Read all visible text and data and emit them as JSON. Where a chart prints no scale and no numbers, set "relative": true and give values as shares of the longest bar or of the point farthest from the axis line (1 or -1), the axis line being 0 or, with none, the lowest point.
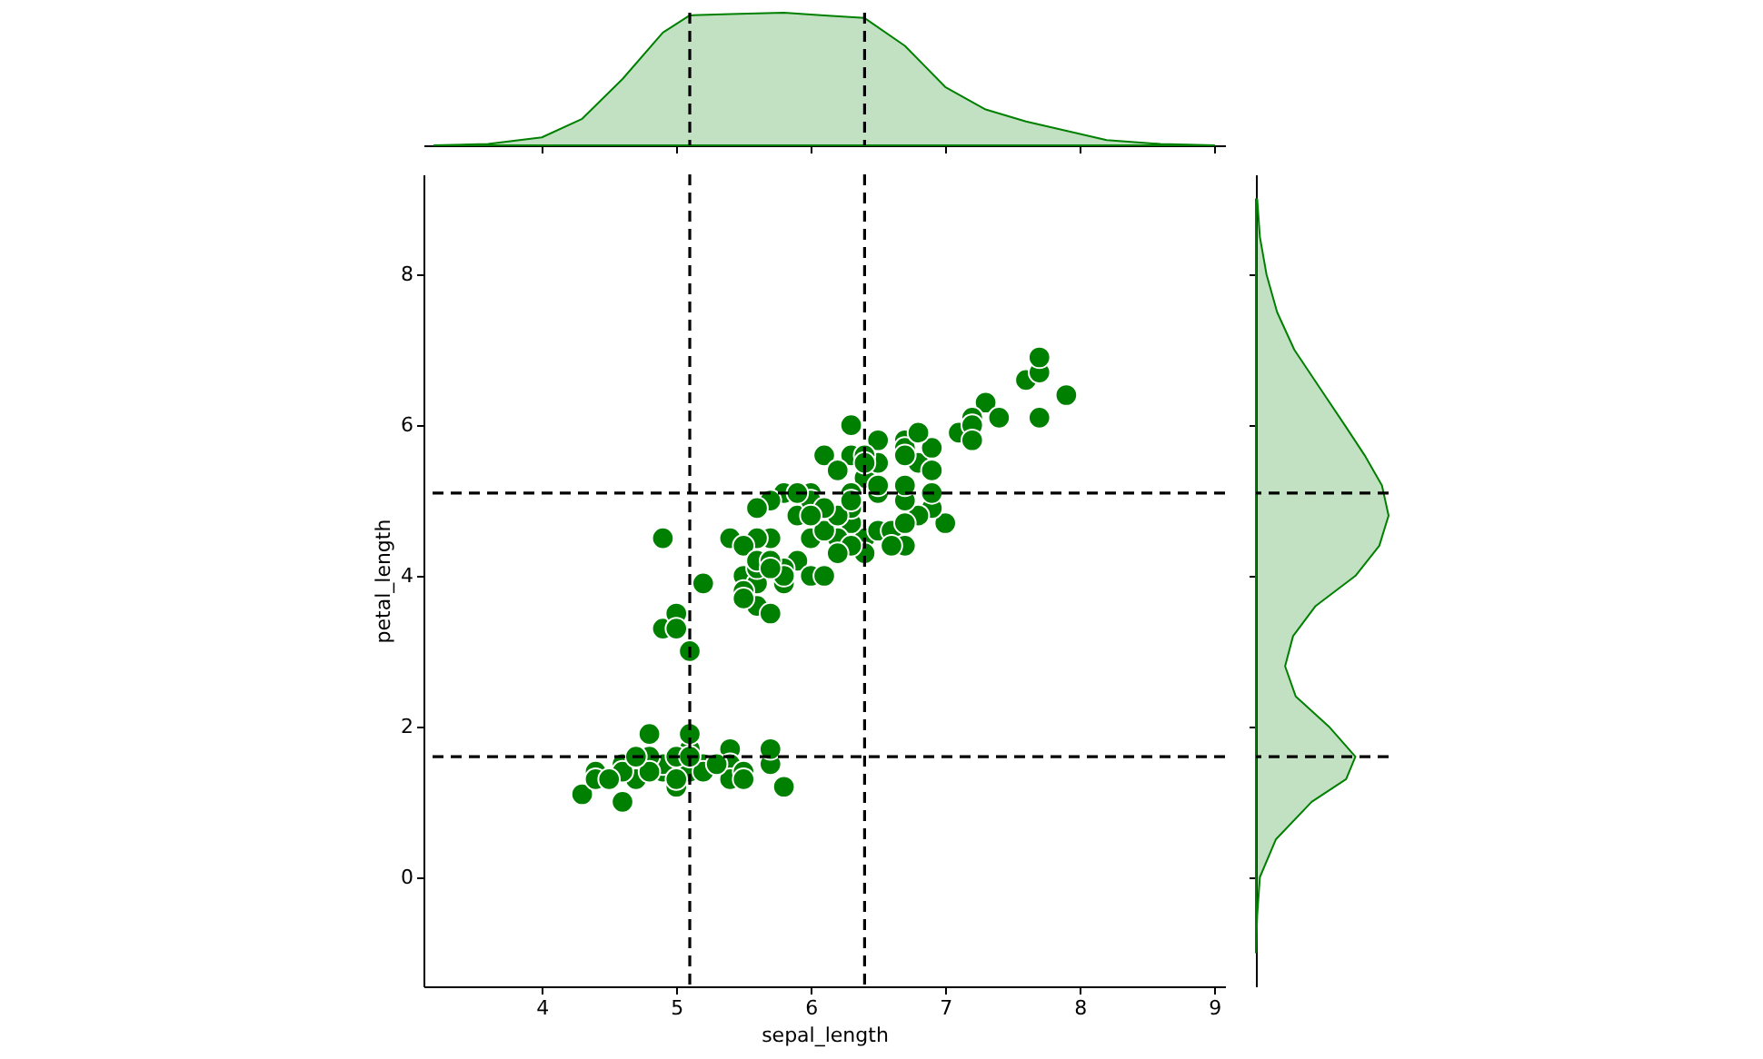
{
  "chart_data": [
    {
      "type": "area",
      "xlim": [
        3.12,
        9.08
      ],
      "xticks": [
        4,
        5,
        6,
        7,
        8,
        9
      ],
      "relative": true,
      "tick_labels": false,
      "x": [
        3.2,
        3.6,
        4.0,
        4.3,
        4.6,
        4.9,
        5.1,
        5.4,
        5.8,
        6.1,
        6.4,
        6.7,
        7.0,
        7.3,
        7.6,
        7.9,
        8.2,
        8.6,
        9.0
      ],
      "series": [
        {
          "color": "#008000",
          "values": [
            0,
            0.01,
            0.06,
            0.2,
            0.5,
            0.85,
            0.98,
            0.99,
            1.0,
            0.98,
            0.96,
            0.75,
            0.44,
            0.27,
            0.18,
            0.11,
            0.04,
            0.01,
            0
          ]
        }
      ],
      "ref_lines": [
        {
          "axis": "x",
          "value": 5.1,
          "color": "#000000",
          "line_style": "dashed"
        },
        {
          "axis": "x",
          "value": 6.4,
          "color": "#000000",
          "line_style": "dashed"
        }
      ]
    },
    {
      "type": "scatter",
      "xlabel": "sepal_length",
      "ylabel": "petal_length",
      "xlim": [
        3.12,
        9.08
      ],
      "ylim": [
        -1.45,
        9.33
      ],
      "xticks": [
        4,
        5,
        6,
        7,
        8,
        9
      ],
      "yticks": [
        0,
        2,
        4,
        6,
        8
      ],
      "marker": "circle",
      "x": [
        5.1,
        4.9,
        4.7,
        4.6,
        5.4,
        4.6,
        4.4,
        4.9,
        5.4,
        4.8,
        4.8,
        4.3,
        5.8,
        5.7,
        5.4,
        5.7,
        4.6,
        5.1,
        4.8,
        5.0,
        5.2,
        5.2,
        4.7,
        5.5,
        5.0,
        5.5,
        4.4,
        5.0,
        4.5,
        5.1,
        5.1,
        5.3,
        7.0,
        6.4,
        6.9,
        5.5,
        6.5,
        5.7,
        6.3,
        4.9,
        6.6,
        5.2,
        5.0,
        5.9,
        6.0,
        5.6,
        6.7,
        5.6,
        5.8,
        6.2,
        5.6,
        5.9,
        6.1,
        6.3,
        6.4,
        6.6,
        6.8,
        6.7,
        6.0,
        5.7,
        5.5,
        5.5,
        5.8,
        6.0,
        5.4,
        6.7,
        6.3,
        5.6,
        5.5,
        6.1,
        5.8,
        5.0,
        5.6,
        5.7,
        6.2,
        5.1,
        5.7,
        6.3,
        5.8,
        7.1,
        6.3,
        6.5,
        7.6,
        4.9,
        7.3,
        6.7,
        7.2,
        6.5,
        6.4,
        6.8,
        5.7,
        6.5,
        7.7,
        7.7,
        6.0,
        6.9,
        5.6,
        6.7,
        7.2,
        6.2,
        6.1,
        6.4,
        7.2,
        7.4,
        7.9,
        6.3,
        6.1,
        7.7,
        6.4,
        6.0,
        6.9,
        6.7,
        6.9,
        6.8,
        6.7,
        6.3,
        6.5,
        6.2,
        5.9
      ],
      "series": [
        {
          "color": "#008000",
          "values": [
            1.4,
            1.4,
            1.3,
            1.5,
            1.7,
            1.4,
            1.4,
            1.5,
            1.5,
            1.6,
            1.4,
            1.1,
            1.2,
            1.5,
            1.3,
            1.7,
            1.0,
            1.7,
            1.9,
            1.6,
            1.5,
            1.4,
            1.6,
            1.4,
            1.2,
            1.3,
            1.3,
            1.3,
            1.3,
            1.9,
            1.6,
            1.5,
            4.7,
            4.5,
            4.9,
            4.0,
            4.6,
            4.5,
            4.7,
            3.3,
            4.6,
            3.9,
            3.5,
            4.2,
            4.0,
            3.6,
            4.4,
            4.5,
            4.1,
            4.5,
            3.9,
            4.8,
            4.0,
            4.9,
            4.3,
            4.4,
            4.8,
            5.0,
            4.5,
            3.5,
            3.8,
            3.7,
            3.9,
            5.1,
            4.5,
            4.7,
            4.4,
            4.1,
            4.4,
            4.6,
            4.0,
            3.3,
            4.2,
            4.2,
            4.3,
            3.0,
            4.1,
            6.0,
            5.1,
            5.9,
            5.6,
            5.8,
            6.6,
            4.5,
            6.3,
            5.8,
            6.1,
            5.1,
            5.3,
            5.5,
            5.0,
            5.5,
            6.7,
            6.9,
            5.0,
            5.7,
            4.9,
            5.7,
            6.0,
            4.8,
            4.9,
            5.6,
            5.8,
            6.1,
            6.4,
            5.1,
            5.6,
            6.1,
            5.5,
            4.8,
            5.4,
            5.6,
            5.1,
            5.9,
            5.2,
            5.0,
            5.2,
            5.4,
            5.1
          ]
        }
      ],
      "ref_lines": [
        {
          "axis": "x",
          "value": 5.1,
          "color": "#000000",
          "line_style": "dashed"
        },
        {
          "axis": "x",
          "value": 6.4,
          "color": "#000000",
          "line_style": "dashed"
        },
        {
          "axis": "y",
          "value": 1.6,
          "color": "#000000",
          "line_style": "dashed"
        },
        {
          "axis": "y",
          "value": 5.1,
          "color": "#000000",
          "line_style": "dashed"
        }
      ]
    },
    {
      "type": "area",
      "orientation": "horizontal",
      "ylim": [
        -1.45,
        9.33
      ],
      "yticks": [
        0,
        2,
        4,
        6,
        8
      ],
      "relative": true,
      "tick_labels": false,
      "x": [
        -1.0,
        -0.5,
        0,
        0.5,
        1.0,
        1.3,
        1.6,
        2.0,
        2.4,
        2.8,
        3.2,
        3.6,
        4.0,
        4.4,
        4.8,
        5.2,
        5.6,
        6.0,
        6.5,
        7.0,
        7.5,
        8.0,
        8.5,
        9.0
      ],
      "series": [
        {
          "color": "#008000",
          "values": [
            0,
            0.01,
            0.03,
            0.15,
            0.42,
            0.68,
            0.75,
            0.55,
            0.3,
            0.22,
            0.28,
            0.45,
            0.75,
            0.93,
            1.0,
            0.95,
            0.82,
            0.67,
            0.48,
            0.29,
            0.16,
            0.08,
            0.03,
            0.01
          ]
        }
      ],
      "ref_lines": [
        {
          "axis": "y",
          "value": 1.6,
          "color": "#000000",
          "line_style": "dashed"
        },
        {
          "axis": "y",
          "value": 5.1,
          "color": "#000000",
          "line_style": "dashed"
        }
      ]
    }
  ]
}
